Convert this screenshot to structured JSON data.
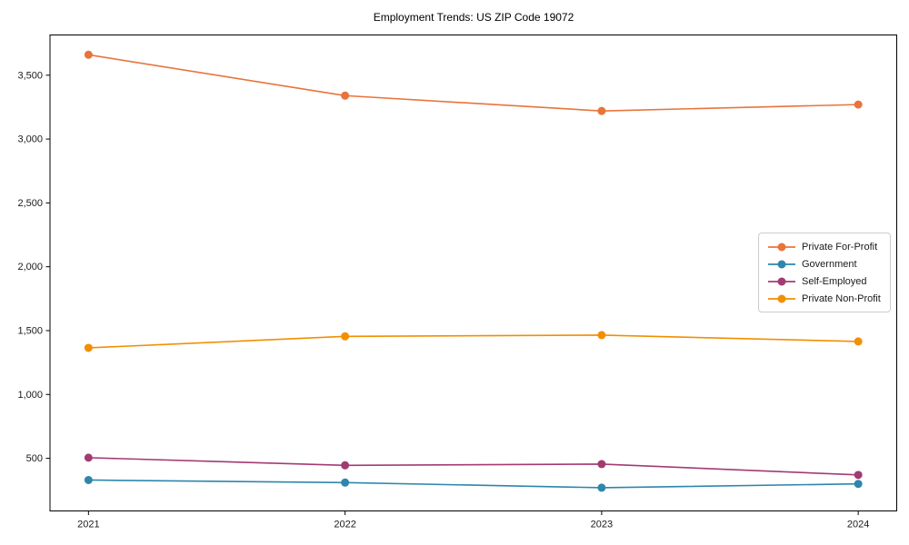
{
  "chart_data": {
    "type": "line",
    "title": "Employment Trends: US ZIP Code 19072",
    "categories": [
      "2021",
      "2022",
      "2023",
      "2024"
    ],
    "series": [
      {
        "name": "Private For-Profit",
        "color": "#E8743B",
        "values": [
          3660,
          3340,
          3220,
          3270
        ]
      },
      {
        "name": "Government",
        "color": "#2E86AB",
        "values": [
          330,
          310,
          270,
          300
        ]
      },
      {
        "name": "Self-Employed",
        "color": "#A23B72",
        "values": [
          505,
          445,
          455,
          370
        ]
      },
      {
        "name": "Private Non-Profit",
        "color": "#F18F01",
        "values": [
          1365,
          1455,
          1465,
          1415
        ]
      }
    ],
    "yticks": {
      "values": [
        500,
        1000,
        1500,
        2000,
        2500,
        3000,
        3500
      ],
      "labels": [
        "500",
        "1,000",
        "1,500",
        "2,000",
        "2,500",
        "3,000",
        "3,500"
      ]
    },
    "ylim": [
      88,
      3815
    ],
    "xlim": [
      -0.15,
      3.15
    ],
    "grid": false,
    "legend_position": "center right",
    "axis_color": "#000000",
    "background": "#ffffff"
  }
}
